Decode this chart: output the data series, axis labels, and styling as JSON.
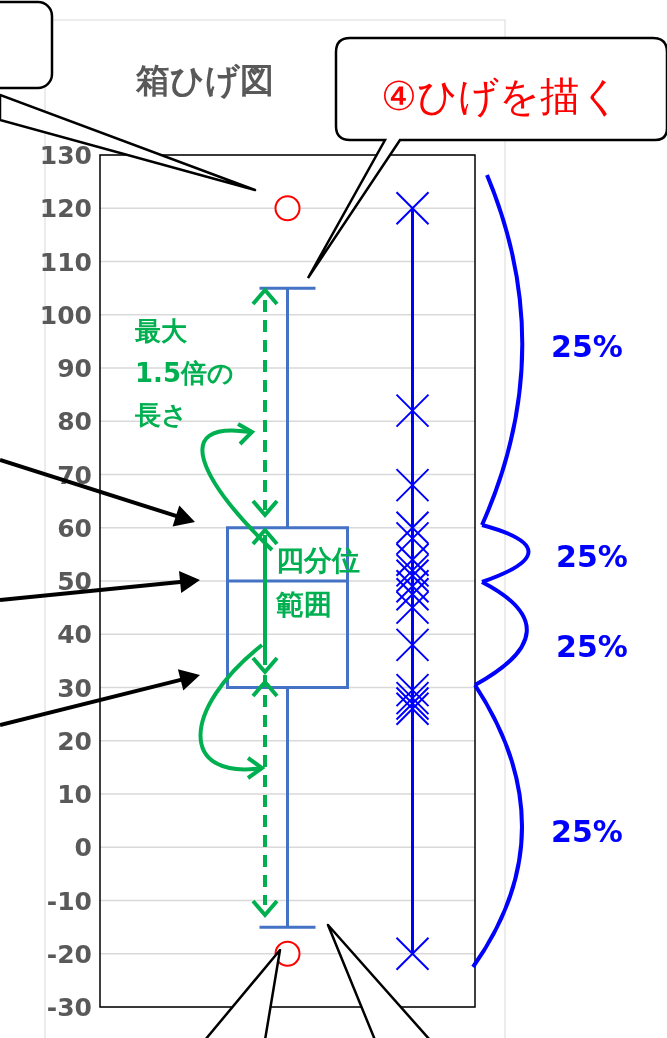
{
  "chart_data": {
    "type": "box",
    "title": "箱ひげ図",
    "categories": [
      null,
      null,
      null
    ],
    "color": "#4472c4",
    "boxes": [
      null,
      {
        "low": -15,
        "q1": 30,
        "median": 50,
        "q3": 60,
        "high": 105,
        "outliers": [
          120,
          -20
        ]
      },
      null
    ],
    "series": [
      {
        "type": "bar",
        "color": "#0000ff",
        "base": [
          null,
          null,
          -20
        ],
        "values": [
          null,
          null,
          140
        ]
      },
      {
        "type": "scatter",
        "color": "#0000ff",
        "marker": "cross",
        "values": [
          null,
          null,
          120
        ]
      },
      {
        "type": "scatter",
        "color": "#0000ff",
        "marker": "cross",
        "values": [
          null,
          null,
          82
        ]
      },
      {
        "type": "scatter",
        "color": "#0000ff",
        "marker": "cross",
        "values": [
          null,
          null,
          68
        ]
      },
      {
        "type": "scatter",
        "color": "#0000ff",
        "marker": "cross",
        "values": [
          null,
          null,
          60
        ]
      },
      {
        "type": "scatter",
        "color": "#0000ff",
        "marker": "cross",
        "values": [
          null,
          null,
          58
        ]
      },
      {
        "type": "scatter",
        "color": "#0000ff",
        "marker": "cross",
        "values": [
          null,
          null,
          54
        ]
      },
      {
        "type": "scatter",
        "color": "#0000ff",
        "marker": "cross",
        "values": [
          null,
          null,
          52
        ]
      },
      {
        "type": "scatter",
        "color": "#0000ff",
        "marker": "cross",
        "values": [
          null,
          null,
          51
        ]
      },
      {
        "type": "scatter",
        "color": "#0000ff",
        "marker": "cross",
        "values": [
          null,
          null,
          49
        ]
      },
      {
        "type": "scatter",
        "color": "#0000ff",
        "marker": "cross",
        "values": [
          null,
          null,
          47.5
        ]
      },
      {
        "type": "scatter",
        "color": "#0000ff",
        "marker": "cross",
        "values": [
          null,
          null,
          45
        ]
      },
      {
        "type": "scatter",
        "color": "#0000ff",
        "marker": "cross",
        "values": [
          null,
          null,
          38
        ]
      },
      {
        "type": "scatter",
        "color": "#0000ff",
        "marker": "cross",
        "values": [
          null,
          null,
          29.5
        ]
      },
      {
        "type": "scatter",
        "color": "#0000ff",
        "marker": "cross",
        "values": [
          null,
          null,
          28
        ]
      },
      {
        "type": "scatter",
        "color": "#0000ff",
        "marker": "cross",
        "values": [
          null,
          null,
          27
        ]
      },
      {
        "type": "scatter",
        "color": "#0000ff",
        "marker": "cross",
        "values": [
          null,
          null,
          26
        ]
      },
      {
        "type": "scatter",
        "color": "#0000ff",
        "marker": "cross",
        "values": [
          null,
          null,
          -20
        ]
      }
    ],
    "ylim": [
      -30,
      130
    ],
    "yticks": [
      -30,
      -20,
      -10,
      0,
      10,
      20,
      30,
      40,
      50,
      60,
      70,
      80,
      90,
      100,
      110,
      120,
      130
    ],
    "grid": "y",
    "tick_labels": "y",
    "annotations": [
      "④ひげを描く",
      "最大",
      "1.5倍の",
      "長さ",
      "四分位",
      "範囲",
      "25%",
      "25%",
      "25%",
      "25%"
    ]
  }
}
